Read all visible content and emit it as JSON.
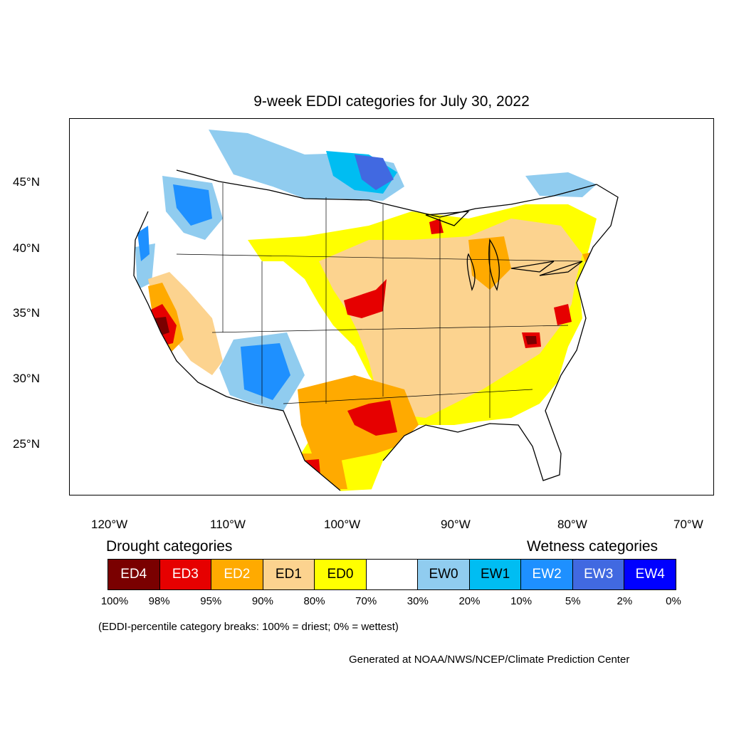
{
  "title": "9-week EDDI categories for July 30, 2022",
  "map": {
    "latitude_labels": [
      "45°N",
      "40°N",
      "35°N",
      "30°N",
      "25°N"
    ],
    "longitude_labels": [
      "120°W",
      "110°W",
      "100°W",
      "90°W",
      "80°W",
      "70°W"
    ]
  },
  "legend": {
    "drought_heading": "Drought categories",
    "wetness_heading": "Wetness categories",
    "categories": [
      {
        "label": "ED4",
        "color": "#7a0000",
        "text_color": "#ffffff"
      },
      {
        "label": "ED3",
        "color": "#e60000",
        "text_color": "#ffffff"
      },
      {
        "label": "ED2",
        "color": "#ffaa00",
        "text_color": "#ffffff"
      },
      {
        "label": "ED1",
        "color": "#fcd38f",
        "text_color": "#000000"
      },
      {
        "label": "ED0",
        "color": "#ffff00",
        "text_color": "#000000"
      },
      {
        "label": "",
        "color": "#ffffff",
        "text_color": "#000000"
      },
      {
        "label": "EW0",
        "color": "#90ccef",
        "text_color": "#000000"
      },
      {
        "label": "EW1",
        "color": "#00bdf2",
        "text_color": "#000000"
      },
      {
        "label": "EW2",
        "color": "#1e90ff",
        "text_color": "#ffffff"
      },
      {
        "label": "EW3",
        "color": "#4169e1",
        "text_color": "#ffffff"
      },
      {
        "label": "EW4",
        "color": "#0000ff",
        "text_color": "#ffffff"
      }
    ],
    "breaks": [
      "100%",
      "98%",
      "95%",
      "90%",
      "80%",
      "70%",
      "30%",
      "20%",
      "10%",
      "5%",
      "2%",
      "0%"
    ]
  },
  "note": "(EDDI-percentile category breaks: 100% = driest; 0% = wettest)",
  "credit": "Generated at NOAA/NWS/NCEP/Climate Prediction Center"
}
